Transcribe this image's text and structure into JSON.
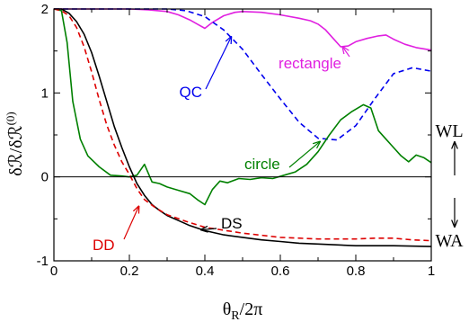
{
  "chart_data": {
    "type": "line",
    "xlabel": "θ_R/2π",
    "ylabel": "δℛ/δℛ^(0)",
    "xlim": [
      0,
      1
    ],
    "ylim": [
      -1,
      2
    ],
    "xticks": [
      "0",
      "0.2",
      "0.4",
      "0.6",
      "0.8",
      "1"
    ],
    "yticks": [
      "-1",
      "0",
      "1",
      "2"
    ],
    "zero_line": true,
    "grid": false,
    "legend": "none",
    "series": [
      {
        "name": "rectangle",
        "color": "#e020e0",
        "dash": "solid",
        "x": [
          0,
          0.05,
          0.1,
          0.15,
          0.2,
          0.25,
          0.3,
          0.33,
          0.36,
          0.38,
          0.4,
          0.42,
          0.45,
          0.48,
          0.5,
          0.55,
          0.6,
          0.65,
          0.68,
          0.7,
          0.72,
          0.74,
          0.76,
          0.78,
          0.8,
          0.83,
          0.86,
          0.88,
          0.9,
          0.93,
          0.96,
          1.0
        ],
        "y": [
          2,
          2,
          2,
          2,
          2,
          1.99,
          1.97,
          1.93,
          1.87,
          1.82,
          1.77,
          1.84,
          1.92,
          1.96,
          1.97,
          1.96,
          1.93,
          1.89,
          1.86,
          1.82,
          1.75,
          1.65,
          1.55,
          1.56,
          1.61,
          1.65,
          1.68,
          1.69,
          1.64,
          1.58,
          1.54,
          1.51
        ]
      },
      {
        "name": "QC",
        "color": "#0000ee",
        "dash": "dashed",
        "x": [
          0,
          0.1,
          0.2,
          0.3,
          0.35,
          0.4,
          0.45,
          0.5,
          0.55,
          0.6,
          0.65,
          0.7,
          0.75,
          0.8,
          0.85,
          0.9,
          0.95,
          1.0
        ],
        "y": [
          2,
          2,
          2,
          2,
          1.98,
          1.91,
          1.75,
          1.52,
          1.22,
          0.93,
          0.65,
          0.46,
          0.44,
          0.61,
          0.93,
          1.23,
          1.3,
          1.26
        ]
      },
      {
        "name": "circle",
        "color": "#008000",
        "dash": "solid",
        "x": [
          0,
          0.02,
          0.035,
          0.05,
          0.07,
          0.09,
          0.12,
          0.15,
          0.18,
          0.2,
          0.22,
          0.24,
          0.26,
          0.28,
          0.3,
          0.33,
          0.36,
          0.38,
          0.4,
          0.42,
          0.44,
          0.46,
          0.49,
          0.52,
          0.55,
          0.58,
          0.61,
          0.64,
          0.67,
          0.7,
          0.73,
          0.76,
          0.79,
          0.82,
          0.84,
          0.86,
          0.88,
          0.9,
          0.92,
          0.94,
          0.96,
          0.98,
          1.0
        ],
        "y": [
          2,
          1.98,
          1.6,
          0.9,
          0.45,
          0.25,
          0.12,
          0.02,
          0.01,
          0.0,
          0.02,
          0.15,
          -0.06,
          -0.08,
          -0.12,
          -0.16,
          -0.2,
          -0.27,
          -0.33,
          -0.15,
          -0.05,
          -0.07,
          -0.02,
          -0.03,
          -0.01,
          -0.02,
          0.02,
          0.06,
          0.15,
          0.3,
          0.5,
          0.68,
          0.78,
          0.86,
          0.82,
          0.55,
          0.45,
          0.35,
          0.25,
          0.18,
          0.26,
          0.23,
          0.17
        ]
      },
      {
        "name": "DS",
        "color": "#000000",
        "dash": "solid",
        "x": [
          0,
          0.02,
          0.04,
          0.06,
          0.08,
          0.1,
          0.12,
          0.14,
          0.16,
          0.18,
          0.2,
          0.22,
          0.24,
          0.26,
          0.28,
          0.3,
          0.33,
          0.36,
          0.4,
          0.45,
          0.5,
          0.55,
          0.6,
          0.65,
          0.7,
          0.8,
          0.9,
          1.0
        ],
        "y": [
          2,
          2,
          1.95,
          1.85,
          1.7,
          1.48,
          1.2,
          0.9,
          0.6,
          0.35,
          0.12,
          -0.08,
          -0.22,
          -0.33,
          -0.4,
          -0.46,
          -0.52,
          -0.58,
          -0.64,
          -0.69,
          -0.72,
          -0.75,
          -0.77,
          -0.79,
          -0.8,
          -0.82,
          -0.82,
          -0.83
        ]
      },
      {
        "name": "DD",
        "color": "#dd0000",
        "dash": "dashed",
        "x": [
          0,
          0.02,
          0.04,
          0.06,
          0.08,
          0.1,
          0.12,
          0.14,
          0.16,
          0.18,
          0.2,
          0.22,
          0.24,
          0.27,
          0.3,
          0.35,
          0.4,
          0.5,
          0.6,
          0.7,
          0.8,
          0.85,
          0.9,
          0.95,
          1.0
        ],
        "y": [
          2,
          1.98,
          1.92,
          1.78,
          1.55,
          1.25,
          0.92,
          0.62,
          0.38,
          0.18,
          0.03,
          -0.14,
          -0.27,
          -0.37,
          -0.45,
          -0.53,
          -0.6,
          -0.67,
          -0.72,
          -0.74,
          -0.74,
          -0.73,
          -0.73,
          -0.75,
          -0.76
        ]
      }
    ],
    "annotations": [
      {
        "name": "rectangle",
        "color": "#e020e0",
        "arrow_to": [
          0.765,
          1.55
        ]
      },
      {
        "name": "QC",
        "color": "#0000ee",
        "arrow_to": [
          0.47,
          1.67
        ]
      },
      {
        "name": "circle",
        "color": "#008000",
        "arrow_to": [
          0.705,
          0.42
        ]
      },
      {
        "name": "DS",
        "color": "#000000",
        "arrow_to": [
          0.39,
          -0.63
        ]
      },
      {
        "name": "DD",
        "color": "#dd0000",
        "arrow_to": [
          0.225,
          -0.35
        ]
      }
    ],
    "side_labels": {
      "top": "WL",
      "bottom": "WA"
    }
  }
}
